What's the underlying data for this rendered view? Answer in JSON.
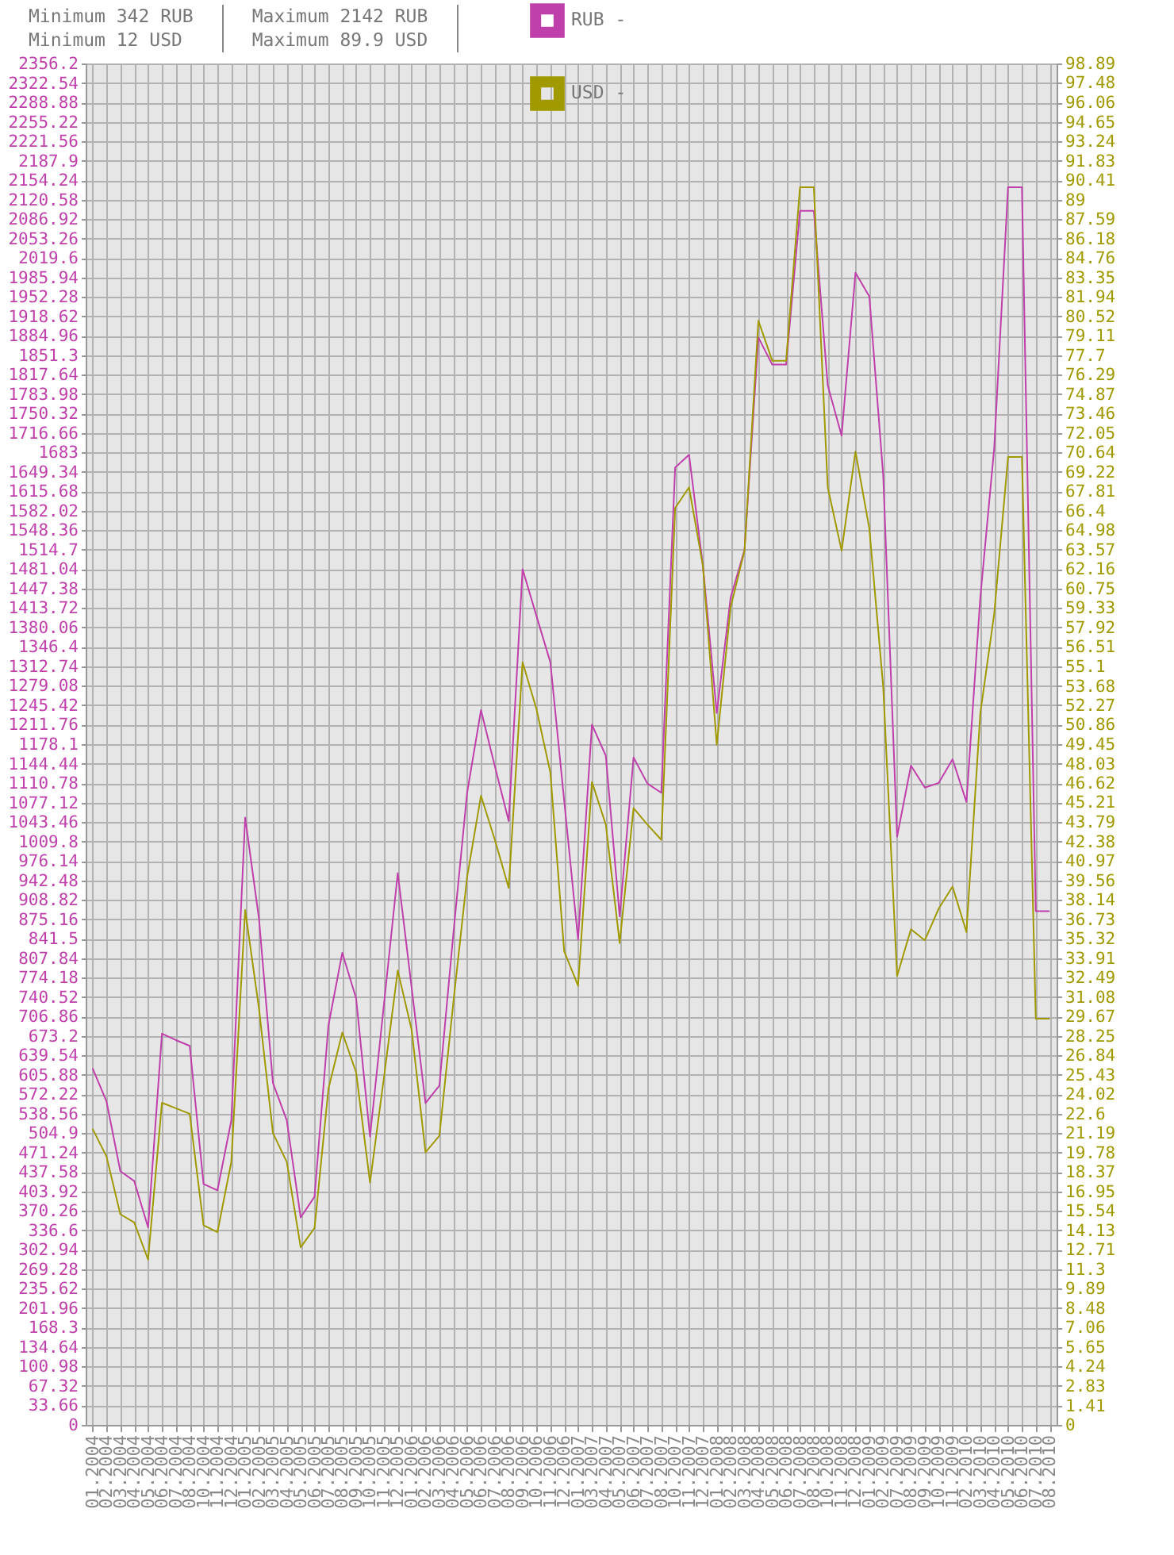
{
  "chart_data": {
    "type": "line",
    "annotations": [
      "Minimum 342 RUB",
      "Maximum 2142 RUB",
      "Minimum 12 USD",
      "Maximum 89.9 USD"
    ],
    "categories": [
      "01.2004",
      "02.2004",
      "03.2004",
      "04.2004",
      "05.2004",
      "06.2004",
      "07.2004",
      "08.2004",
      "10.2004",
      "11.2004",
      "12.2004",
      "01.2005",
      "02.2005",
      "03.2005",
      "04.2005",
      "05.2005",
      "06.2005",
      "07.2005",
      "08.2005",
      "09.2005",
      "10.2005",
      "11.2005",
      "12.2005",
      "01.2006",
      "02.2006",
      "03.2006",
      "04.2006",
      "05.2006",
      "06.2006",
      "07.2006",
      "08.2006",
      "09.2006",
      "10.2006",
      "11.2006",
      "12.2006",
      "01.2007",
      "03.2007",
      "04.2007",
      "05.2007",
      "06.2007",
      "07.2007",
      "08.2007",
      "10.2007",
      "11.2007",
      "12.2007",
      "01.2008",
      "02.2008",
      "03.2008",
      "04.2008",
      "05.2008",
      "06.2008",
      "07.2008",
      "08.2008",
      "10.2008",
      "11.2008",
      "12.2008",
      "01.2009",
      "02.2009",
      "07.2009",
      "08.2009",
      "09.2009",
      "10.2009",
      "11.2009",
      "02.2010",
      "03.2010",
      "04.2010",
      "05.2010",
      "06.2010",
      "07.2010",
      "08.2010"
    ],
    "series": [
      {
        "name": "RUB -",
        "color": "#c040ab",
        "values": [
          617,
          560,
          439,
          422,
          342,
          677,
          666,
          656,
          417,
          406,
          527,
          1051,
          875,
          592,
          527,
          359,
          395,
          691,
          817,
          738,
          499,
          727,
          955,
          757,
          557,
          587,
          848,
          1094,
          1237,
          1140,
          1045,
          1481,
          1400,
          1320,
          1080,
          840,
          1212,
          1158,
          880,
          1155,
          1110,
          1094,
          1657,
          1679,
          1487,
          1232,
          1432,
          1514,
          1882,
          1835,
          1835,
          2101,
          2101,
          1799,
          1712,
          1994,
          1953,
          1643,
          1018,
          1141,
          1103,
          1111,
          1152,
          1078,
          1432,
          1690,
          2142,
          2142,
          889,
          889
        ]
      },
      {
        "name": "USD -",
        "color": "#a09a00",
        "axis": "y2",
        "values": [
          21.5,
          19.5,
          15.3,
          14.7,
          12,
          23.4,
          23,
          22.6,
          14.5,
          14,
          19.1,
          37.4,
          30.2,
          21.2,
          19.1,
          12.9,
          14.3,
          24.4,
          28.5,
          25.6,
          17.6,
          25.2,
          33,
          28.7,
          19.8,
          21,
          30.6,
          39.8,
          45.7,
          42.5,
          39,
          55.4,
          52,
          47.4,
          34.4,
          31.9,
          46.7,
          43.6,
          35,
          44.8,
          43.6,
          42.5,
          66.6,
          68.1,
          62.4,
          49.4,
          59.4,
          63.5,
          80.2,
          77.3,
          77.3,
          89.9,
          89.9,
          68.1,
          63.5,
          70.7,
          65.1,
          53.6,
          32.6,
          36,
          35.2,
          37.5,
          39.1,
          35.8,
          51.7,
          58.9,
          70.3,
          70.3,
          29.5,
          29.5
        ]
      }
    ],
    "ylim": [
      0,
      2356.2
    ],
    "yticks": [
      0,
      33.66,
      67.32,
      100.98,
      134.64,
      168.3,
      201.96,
      235.62,
      269.28,
      302.94,
      336.6,
      370.26,
      403.92,
      437.58,
      471.24,
      504.9,
      538.56,
      572.22,
      605.88,
      639.54,
      673.2,
      706.86,
      740.52,
      774.18,
      807.84,
      841.5,
      875.16,
      908.82,
      942.48,
      976.14,
      1009.8,
      1043.46,
      1077.12,
      1110.78,
      1144.44,
      1178.1,
      1211.76,
      1245.42,
      1279.08,
      1312.74,
      1346.4,
      1380.06,
      1413.72,
      1447.38,
      1481.04,
      1514.7,
      1548.36,
      1582.02,
      1615.68,
      1649.34,
      1683,
      1716.66,
      1750.32,
      1783.98,
      1817.64,
      1851.3,
      1884.96,
      1918.62,
      1952.28,
      1985.94,
      2019.6,
      2053.26,
      2086.92,
      2120.58,
      2154.24,
      2187.9,
      2221.56,
      2255.22,
      2288.88,
      2322.54,
      2356.2
    ],
    "y2lim": [
      0,
      98.89
    ],
    "y2ticks": [
      0,
      1.41,
      2.83,
      4.24,
      5.65,
      7.06,
      8.48,
      9.89,
      11.3,
      12.71,
      14.13,
      15.54,
      16.95,
      18.37,
      19.78,
      21.19,
      22.6,
      24.02,
      25.43,
      26.84,
      28.25,
      29.67,
      31.08,
      32.49,
      33.91,
      35.32,
      36.73,
      38.14,
      39.56,
      40.97,
      42.38,
      43.79,
      45.21,
      46.62,
      48.03,
      49.45,
      50.86,
      52.27,
      53.68,
      55.1,
      56.51,
      57.92,
      59.33,
      60.75,
      62.16,
      63.57,
      64.98,
      66.4,
      67.81,
      69.22,
      70.64,
      72.05,
      73.46,
      74.87,
      76.29,
      77.7,
      79.11,
      80.52,
      81.94,
      83.35,
      84.76,
      86.18,
      87.59,
      89,
      90.41,
      91.83,
      93.24,
      94.65,
      96.06,
      97.48,
      98.89
    ],
    "grid": true,
    "legend": "top"
  }
}
